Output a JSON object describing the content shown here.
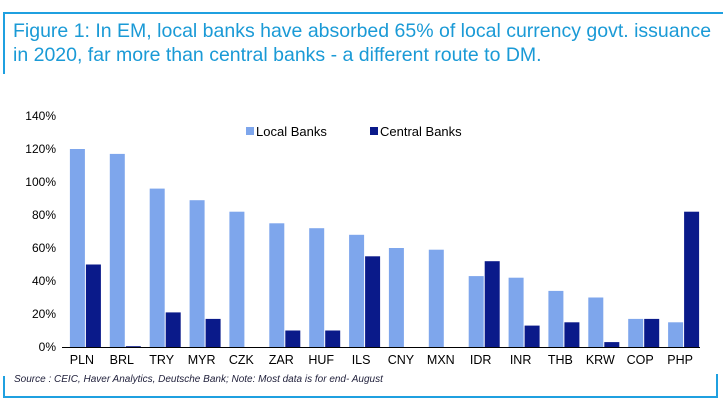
{
  "title": "Figure 1: In EM, local banks have absorbed 65% of local currency govt. issuance in 2020, far more than central banks - a different route to DM.",
  "source": "Source : CEIC, Haver Analytics, Deutsche Bank; Note: Most data is for end- August",
  "colors": {
    "frame": "#1fa0e0",
    "title": "#1a9ad6",
    "local": "#7ea6ec",
    "central": "#0a1a8a"
  },
  "chart_data": {
    "type": "bar",
    "categories": [
      "PLN",
      "BRL",
      "TRY",
      "MYR",
      "CZK",
      "ZAR",
      "HUF",
      "ILS",
      "CNY",
      "MXN",
      "IDR",
      "INR",
      "THB",
      "KRW",
      "COP",
      "PHP"
    ],
    "series": [
      {
        "name": "Local Banks",
        "color": "#7ea6ec",
        "values": [
          120,
          117,
          96,
          89,
          82,
          75,
          72,
          68,
          60,
          59,
          43,
          42,
          34,
          30,
          17,
          15
        ]
      },
      {
        "name": "Central Banks",
        "color": "#0a1a8a",
        "values": [
          50,
          0.5,
          21,
          17,
          0,
          10,
          10,
          55,
          0,
          0,
          52,
          13,
          15,
          3,
          17,
          82
        ]
      }
    ],
    "ylim": [
      0,
      140
    ],
    "yticks": [
      "0%",
      "20%",
      "40%",
      "60%",
      "80%",
      "100%",
      "120%",
      "140%"
    ],
    "ytick_values": [
      0,
      20,
      40,
      60,
      80,
      100,
      120,
      140
    ],
    "legend": "top-center",
    "grid": false
  }
}
